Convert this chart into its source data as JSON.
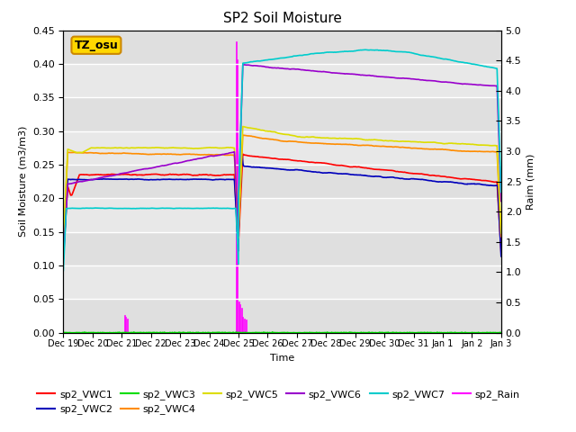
{
  "title": "SP2 Soil Moisture",
  "ylabel_left": "Soil Moisture (m3/m3)",
  "ylabel_right": "Raim (mm)",
  "xlabel": "Time",
  "ylim_left": [
    0.0,
    0.45
  ],
  "ylim_right": [
    0.0,
    5.0
  ],
  "yticks_left": [
    0.0,
    0.05,
    0.1,
    0.15,
    0.2,
    0.25,
    0.3,
    0.35,
    0.4,
    0.45
  ],
  "yticks_right": [
    0.0,
    0.5,
    1.0,
    1.5,
    2.0,
    2.5,
    3.0,
    3.5,
    4.0,
    4.5,
    5.0
  ],
  "xtick_labels": [
    "Dec 19",
    "Dec 20",
    "Dec 21",
    "Dec 22",
    "Dec 23",
    "Dec 24",
    "Dec 25",
    "Dec 26",
    "Dec 27",
    "Dec 28",
    "Dec 29",
    "Dec 30",
    "Dec 31",
    "Jan 1",
    "Jan 2",
    "Jan 3"
  ],
  "annotation_text": "TZ_osu",
  "annotation_facecolor": "#FFD700",
  "annotation_edgecolor": "#CC8800",
  "bg_color": "#E8E8E8",
  "colors": {
    "VWC1": "#FF0000",
    "VWC2": "#0000BB",
    "VWC3": "#00DD00",
    "VWC4": "#FF8C00",
    "VWC5": "#DDDD00",
    "VWC6": "#9900CC",
    "VWC7": "#00CCCC",
    "Rain": "#FF00FF"
  }
}
